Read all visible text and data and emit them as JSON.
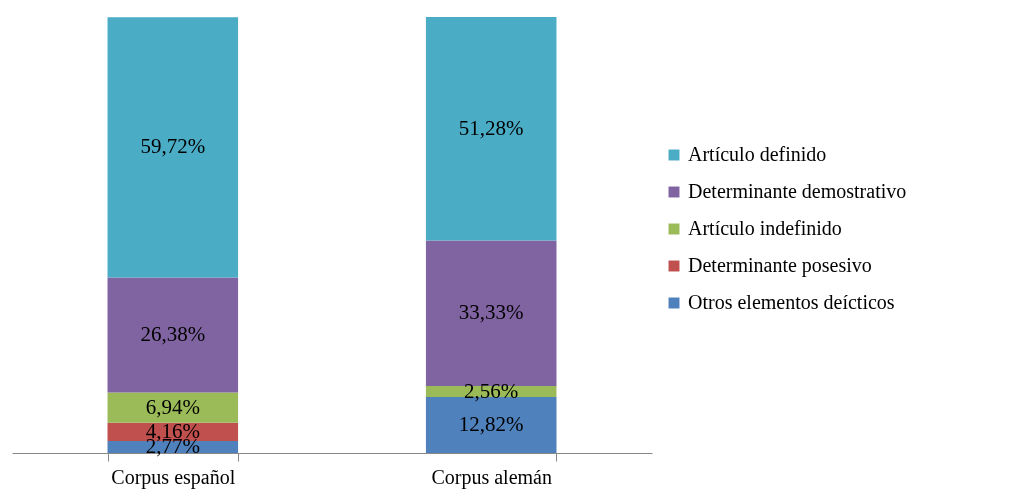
{
  "chart_data": {
    "type": "bar",
    "stacked": true,
    "categories": [
      "Corpus español",
      "Corpus alemán"
    ],
    "ylim": [
      0,
      100
    ],
    "tick_labels": "x",
    "legend": "right",
    "grid": false,
    "series": [
      {
        "name": "Otros elementos deícticos",
        "color": "#4f81bd",
        "values": [
          2.77,
          12.82
        ],
        "value_labels": [
          "2,77%",
          "12,82%"
        ]
      },
      {
        "name": "Determinante posesivo",
        "color": "#c0504d",
        "values": [
          4.16,
          null
        ],
        "value_labels": [
          "4,16%",
          null
        ]
      },
      {
        "name": "Artículo indefinido",
        "color": "#9bbb59",
        "values": [
          6.94,
          2.56
        ],
        "value_labels": [
          "6,94%",
          "2,56%"
        ]
      },
      {
        "name": "Determinante demostrativo",
        "color": "#8064a2",
        "values": [
          26.38,
          33.33
        ],
        "value_labels": [
          "26,38%",
          "33,33%"
        ]
      },
      {
        "name": "Artículo definido",
        "color": "#4bacc6",
        "values": [
          59.72,
          51.28
        ],
        "value_labels": [
          "59,72%",
          "51,28%"
        ]
      }
    ]
  }
}
